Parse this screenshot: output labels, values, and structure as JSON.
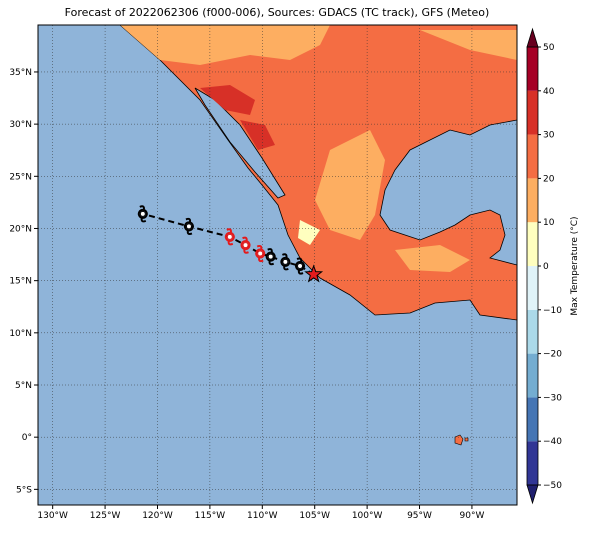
{
  "chart_data": {
    "type": "map",
    "title": "Forecast of 2022062306 (f000-006), Sources: GDACS (TC track), GFS (Meteo)",
    "xlim": [
      -131.4,
      -85.7
    ],
    "ylim": [
      -6.5,
      39.5
    ],
    "xticks": [
      {
        "value": -130,
        "label": "130°W"
      },
      {
        "value": -125,
        "label": "125°W"
      },
      {
        "value": -120,
        "label": "120°W"
      },
      {
        "value": -115,
        "label": "115°W"
      },
      {
        "value": -110,
        "label": "110°W"
      },
      {
        "value": -105,
        "label": "105°W"
      },
      {
        "value": -100,
        "label": "100°W"
      },
      {
        "value": -95,
        "label": "95°W"
      },
      {
        "value": -90,
        "label": "90°W"
      }
    ],
    "yticks": [
      {
        "value": -5,
        "label": "5°S"
      },
      {
        "value": 0,
        "label": "0°"
      },
      {
        "value": 5,
        "label": "5°N"
      },
      {
        "value": 10,
        "label": "10°N"
      },
      {
        "value": 15,
        "label": "15°N"
      },
      {
        "value": 20,
        "label": "20°N"
      },
      {
        "value": 25,
        "label": "25°N"
      },
      {
        "value": 30,
        "label": "30°N"
      },
      {
        "value": 35,
        "label": "35°N"
      }
    ],
    "grid": true,
    "track": {
      "lon": [
        -105.1,
        -106.4,
        -107.8,
        -109.2,
        -110.2,
        -111.6,
        -113.1,
        -117.0,
        -121.4
      ],
      "lat": [
        15.6,
        16.4,
        16.8,
        17.3,
        17.6,
        18.4,
        19.2,
        20.2,
        21.4
      ],
      "markers": [
        "star",
        "hurricane",
        "hurricane",
        "hurricane",
        "hurricane",
        "hurricane",
        "hurricane",
        "hurricane",
        "hurricane"
      ],
      "colors": [
        "#e41a1c",
        "#000000",
        "#000000",
        "#000000",
        "#e41a1c",
        "#e41a1c",
        "#e41a1c",
        "#000000",
        "#000000"
      ]
    },
    "colorbar": {
      "label": "Max Temperature (°C)",
      "clim": [
        -50,
        50
      ],
      "levels": [
        -50,
        -40,
        -30,
        -20,
        -10,
        0,
        10,
        20,
        30,
        40,
        50
      ],
      "colors": [
        "#313695",
        "#4575b4",
        "#74add1",
        "#abd9e9",
        "#e0f3f8",
        "#ffffbf",
        "#fdae61",
        "#f46d43",
        "#d73027",
        "#a50026"
      ],
      "extend_colors": [
        "#1f1f6e",
        "#67001f"
      ],
      "ticks": [
        50,
        40,
        30,
        20,
        10,
        0,
        {
          "value": -10,
          "label": "−10"
        },
        {
          "value": -20,
          "label": "−20"
        },
        {
          "value": -30,
          "label": "−30"
        },
        {
          "value": -40,
          "label": "−40"
        },
        {
          "value": -50,
          "label": "−50"
        }
      ]
    }
  }
}
